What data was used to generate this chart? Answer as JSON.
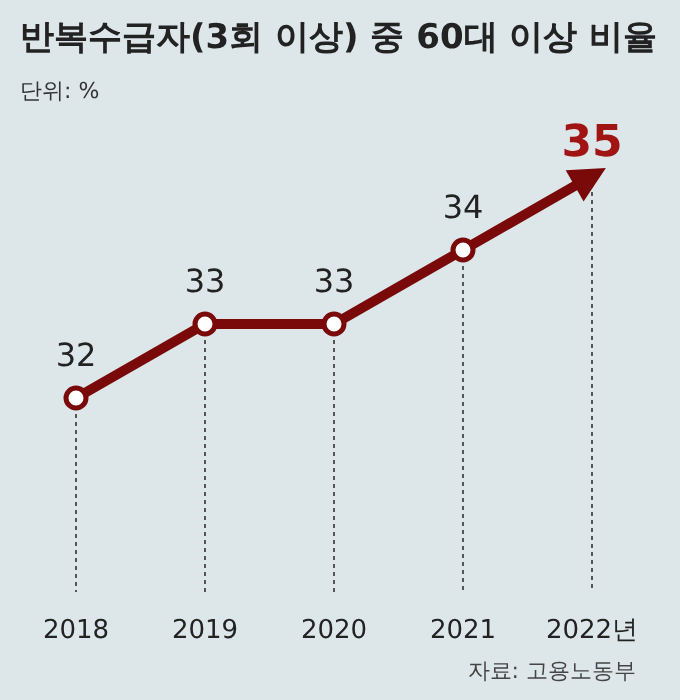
{
  "chart_data": {
    "type": "line",
    "title": "반복수급자(3회 이상) 중 60대 이상 비율",
    "subtitle": "단위: %",
    "categories": [
      "2018",
      "2019",
      "2020",
      "2021",
      "2022년"
    ],
    "series": [
      {
        "color": "#7a0a0a",
        "values": [
          32,
          33,
          33,
          34,
          35
        ]
      }
    ],
    "data_labels": true,
    "grid": "x",
    "marker": "circle",
    "annotations": [
      "자료: 고용노동부"
    ]
  }
}
